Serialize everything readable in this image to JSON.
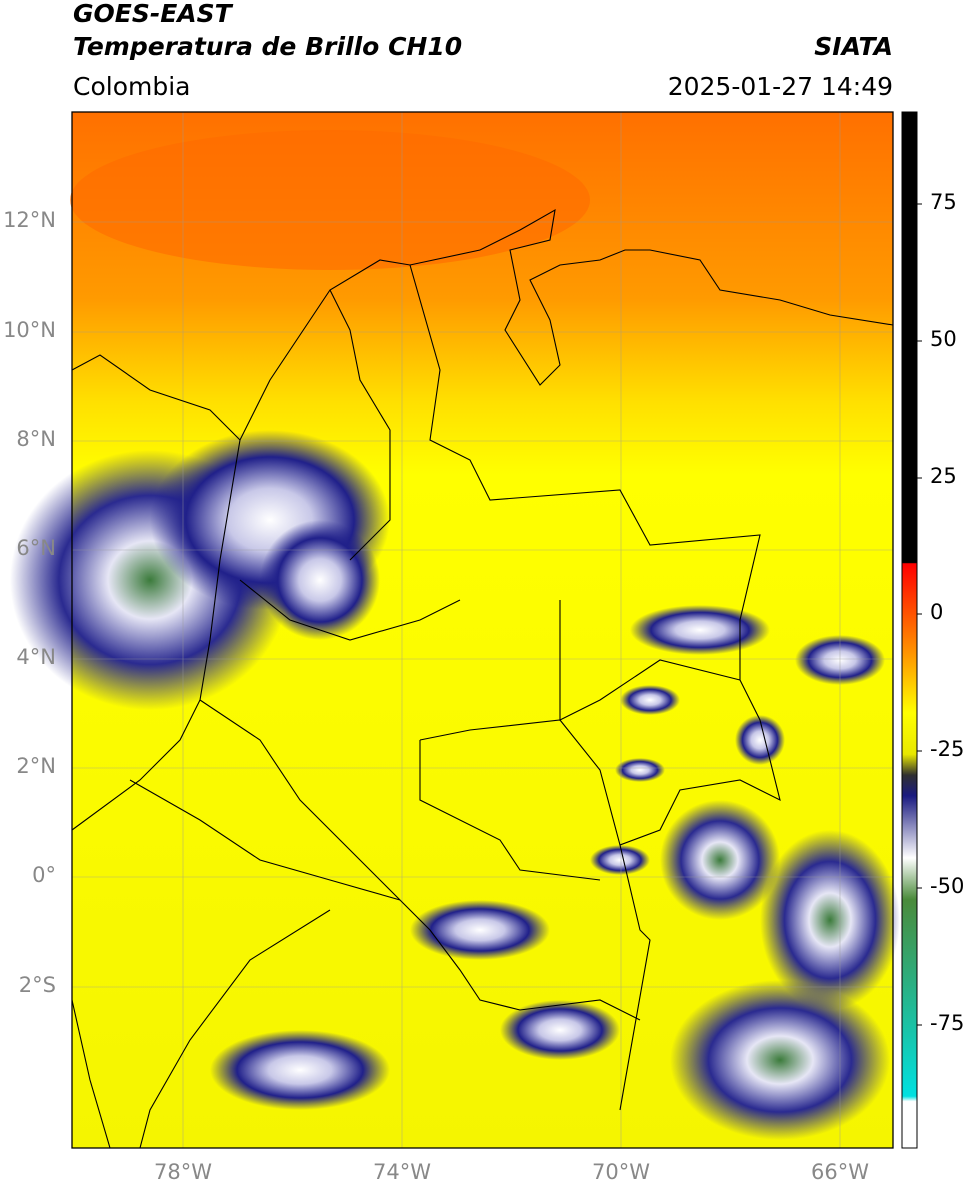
{
  "header": {
    "title_line1": "GOES-EAST",
    "title_line2": "Temperatura de Brillo CH10",
    "source": "SIATA",
    "region": "Colombia",
    "timestamp": "2025-01-27 14:49"
  },
  "map": {
    "lat_labels": [
      "12°N",
      "10°N",
      "8°N",
      "6°N",
      "4°N",
      "2°N",
      "0°",
      "2°S"
    ],
    "lon_labels": [
      "78°W",
      "74°W",
      "70°W",
      "66°W"
    ],
    "colorbar_labels": [
      "75",
      "50",
      "25",
      "0",
      "-25",
      "-50",
      "-75"
    ],
    "colors": {
      "warm": "#ff7f00",
      "mid": "#ffff00",
      "cold": "#1a1a80",
      "very_cold": "#4b8b3b",
      "colorbar_top": "#000000",
      "colorbar_red": "#ff0000",
      "colorbar_cyan": "#00e0e0"
    }
  }
}
